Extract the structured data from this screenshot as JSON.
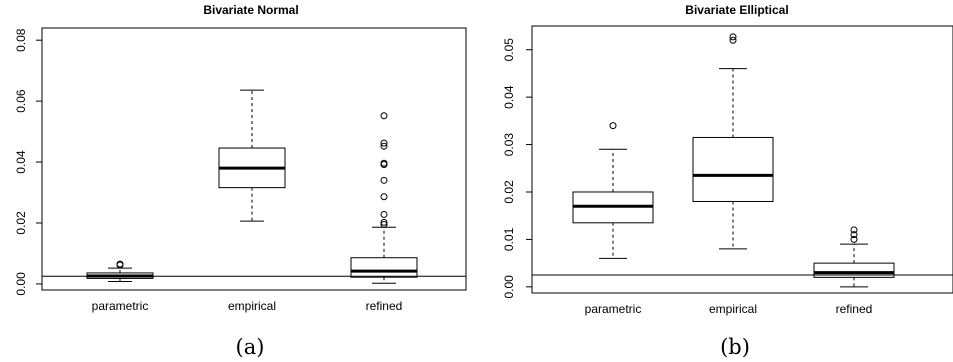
{
  "chart_data": [
    {
      "type": "box",
      "title": "Bivariate Normal",
      "caption": "(a)",
      "categories": [
        "parametric",
        "empirical",
        "refined"
      ],
      "ylim": [
        -0.002,
        0.084
      ],
      "yticks": [
        "0.00",
        "0.02",
        "0.04",
        "0.06",
        "0.08"
      ],
      "reference_line": 0.0025,
      "boxes": [
        {
          "name": "parametric",
          "whisker_low": 0.0008,
          "q1": 0.0018,
          "median": 0.0026,
          "q3": 0.0036,
          "whisker_high": 0.0052,
          "outliers": [
            0.0062,
            0.0065
          ]
        },
        {
          "name": "empirical",
          "whisker_low": 0.0206,
          "q1": 0.0316,
          "median": 0.038,
          "q3": 0.0446,
          "whisker_high": 0.0636,
          "outliers": []
        },
        {
          "name": "refined",
          "whisker_low": 0.0002,
          "q1": 0.0022,
          "median": 0.0042,
          "q3": 0.0086,
          "whisker_high": 0.0186,
          "outliers": [
            0.0195,
            0.0202,
            0.0228,
            0.0286,
            0.034,
            0.0392,
            0.0396,
            0.0452,
            0.0462,
            0.0552
          ]
        }
      ]
    },
    {
      "type": "box",
      "title": "Bivariate Elliptical",
      "caption": "(b)",
      "categories": [
        "parametric",
        "empirical",
        "refined"
      ],
      "ylim": [
        -0.0013,
        0.055
      ],
      "yticks": [
        "0.00",
        "0.01",
        "0.02",
        "0.03",
        "0.04",
        "0.05"
      ],
      "reference_line": 0.0025,
      "boxes": [
        {
          "name": "parametric",
          "whisker_low": 0.006,
          "q1": 0.0135,
          "median": 0.017,
          "q3": 0.02,
          "whisker_high": 0.029,
          "outliers": [
            0.034
          ]
        },
        {
          "name": "empirical",
          "whisker_low": 0.008,
          "q1": 0.018,
          "median": 0.0235,
          "q3": 0.0315,
          "whisker_high": 0.046,
          "outliers": [
            0.052,
            0.0527
          ]
        },
        {
          "name": "refined",
          "whisker_low": 0.0,
          "q1": 0.002,
          "median": 0.003,
          "q3": 0.005,
          "whisker_high": 0.009,
          "outliers": [
            0.01,
            0.011,
            0.012
          ]
        }
      ]
    }
  ]
}
